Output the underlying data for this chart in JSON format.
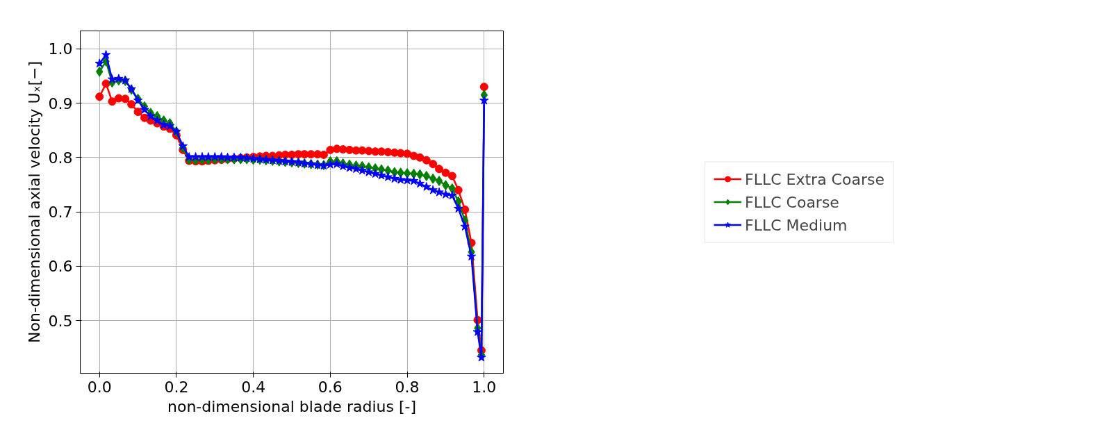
{
  "chart_data": {
    "type": "line",
    "xlabel": "non-dimensional blade radius [-]",
    "ylabel": "Non-dimensional axial velocity Uₓ[−]",
    "x": [
      0,
      0.017,
      0.033,
      0.05,
      0.067,
      0.083,
      0.1,
      0.117,
      0.133,
      0.15,
      0.167,
      0.183,
      0.2,
      0.217,
      0.233,
      0.25,
      0.267,
      0.283,
      0.3,
      0.317,
      0.333,
      0.35,
      0.367,
      0.383,
      0.4,
      0.417,
      0.433,
      0.45,
      0.467,
      0.483,
      0.5,
      0.517,
      0.533,
      0.55,
      0.567,
      0.583,
      0.6,
      0.617,
      0.633,
      0.65,
      0.667,
      0.683,
      0.7,
      0.717,
      0.733,
      0.75,
      0.767,
      0.783,
      0.8,
      0.817,
      0.833,
      0.85,
      0.867,
      0.883,
      0.9,
      0.917,
      0.933,
      0.95,
      0.967,
      0.983,
      0.993,
      1.0
    ],
    "series": [
      {
        "name": "FLLC Extra Coarse",
        "color": "#ff0000",
        "marker": "circle",
        "values": [
          0.912,
          0.936,
          0.903,
          0.909,
          0.908,
          0.898,
          0.884,
          0.873,
          0.868,
          0.863,
          0.857,
          0.853,
          0.841,
          0.814,
          0.794,
          0.793,
          0.793,
          0.794,
          0.795,
          0.796,
          0.797,
          0.798,
          0.799,
          0.8,
          0.801,
          0.802,
          0.803,
          0.803,
          0.804,
          0.805,
          0.805,
          0.806,
          0.806,
          0.806,
          0.806,
          0.805,
          0.814,
          0.816,
          0.815,
          0.814,
          0.813,
          0.813,
          0.812,
          0.811,
          0.811,
          0.81,
          0.809,
          0.808,
          0.807,
          0.803,
          0.8,
          0.795,
          0.788,
          0.779,
          0.772,
          0.766,
          0.74,
          0.704,
          0.643,
          0.501,
          0.445,
          0.93
        ]
      },
      {
        "name": "FLLC Coarse",
        "color": "#008000",
        "marker": "diamond",
        "values": [
          0.958,
          0.977,
          0.938,
          0.942,
          0.941,
          0.925,
          0.908,
          0.894,
          0.882,
          0.876,
          0.868,
          0.863,
          0.848,
          0.818,
          0.796,
          0.795,
          0.796,
          0.796,
          0.797,
          0.797,
          0.797,
          0.797,
          0.797,
          0.797,
          0.796,
          0.796,
          0.795,
          0.794,
          0.793,
          0.792,
          0.791,
          0.79,
          0.789,
          0.788,
          0.787,
          0.786,
          0.793,
          0.793,
          0.789,
          0.787,
          0.785,
          0.784,
          0.782,
          0.78,
          0.778,
          0.776,
          0.773,
          0.772,
          0.771,
          0.77,
          0.769,
          0.766,
          0.761,
          0.757,
          0.749,
          0.743,
          0.719,
          0.684,
          0.626,
          0.486,
          0.437,
          0.915
        ]
      },
      {
        "name": "FLLC Medium",
        "color": "#0000ff",
        "marker": "star",
        "values": [
          0.973,
          0.989,
          0.944,
          0.945,
          0.942,
          0.926,
          0.905,
          0.888,
          0.876,
          0.868,
          0.86,
          0.858,
          0.848,
          0.821,
          0.801,
          0.801,
          0.801,
          0.801,
          0.801,
          0.801,
          0.8,
          0.8,
          0.8,
          0.799,
          0.798,
          0.797,
          0.796,
          0.795,
          0.794,
          0.793,
          0.792,
          0.791,
          0.789,
          0.788,
          0.786,
          0.785,
          0.787,
          0.788,
          0.784,
          0.781,
          0.779,
          0.776,
          0.773,
          0.77,
          0.767,
          0.764,
          0.761,
          0.759,
          0.758,
          0.757,
          0.752,
          0.746,
          0.74,
          0.736,
          0.732,
          0.73,
          0.706,
          0.673,
          0.618,
          0.479,
          0.432,
          0.905
        ]
      }
    ],
    "xlim": [
      -0.05,
      1.05
    ],
    "ylim": [
      0.403,
      1.033
    ],
    "xticks": [
      {
        "value": 0,
        "label": "0.0"
      },
      0.2,
      0.4,
      0.6,
      0.8,
      {
        "value": 1,
        "label": "1.0"
      }
    ],
    "yticks": [
      0.5,
      0.6,
      0.7,
      0.8,
      0.9,
      {
        "value": 1,
        "label": "1.0"
      }
    ],
    "grid": true,
    "legend": "right"
  }
}
